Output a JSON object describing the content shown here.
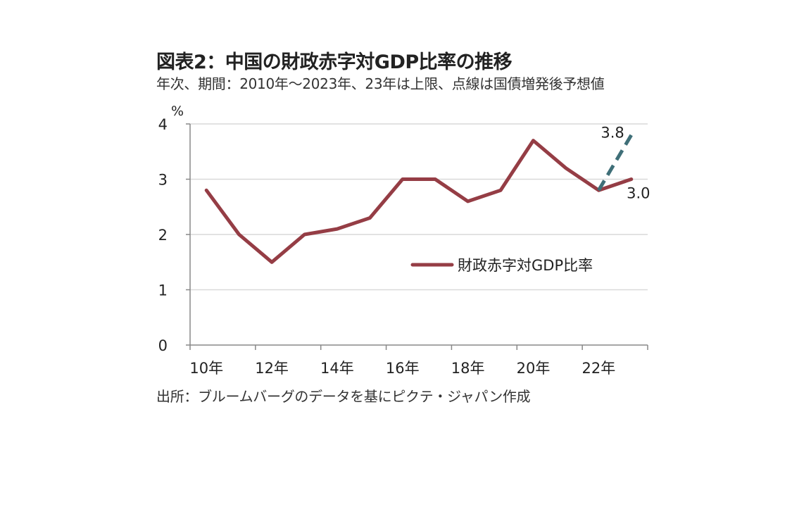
{
  "header": {
    "title": "図表2：中国の財政赤字対GDP比率の推移",
    "subtitle": "年次、期間：2010年～2023年、23年は上限、点線は国債増発後予想値"
  },
  "footer": {
    "source": "出所：ブルームバーグのデータを基にピクテ・ジャパン作成"
  },
  "chart_data": {
    "type": "line",
    "title": "図表2：中国の財政赤字対GDP比率の推移",
    "ylabel": "%",
    "xlabel": "",
    "ylim": [
      0,
      4
    ],
    "yticks": [
      "0",
      "1",
      "2",
      "3",
      "4"
    ],
    "x": [
      2010,
      2011,
      2012,
      2013,
      2014,
      2015,
      2016,
      2017,
      2018,
      2019,
      2020,
      2021,
      2022,
      2023
    ],
    "xtick_labels": [
      "10年",
      "12年",
      "14年",
      "16年",
      "18年",
      "20年",
      "22年"
    ],
    "grid": true,
    "series": [
      {
        "name": "財政赤字対GDP比率",
        "color": "#953d45",
        "style": "solid",
        "values": [
          2.8,
          2.0,
          1.5,
          2.0,
          2.1,
          2.3,
          3.0,
          3.0,
          2.6,
          2.8,
          3.7,
          3.2,
          2.8,
          3.0
        ]
      },
      {
        "name": "国債増発後予想値",
        "color": "#3f6f78",
        "style": "dashed",
        "x": [
          2022,
          2023
        ],
        "values": [
          2.8,
          3.8
        ]
      }
    ],
    "annotations": [
      {
        "text": "3.8",
        "x": 2023,
        "y": 3.8
      },
      {
        "text": "3.0",
        "x": 2023,
        "y": 3.0
      }
    ],
    "legend": {
      "entries": [
        "財政赤字対GDP比率"
      ],
      "placement": "center-right"
    }
  }
}
